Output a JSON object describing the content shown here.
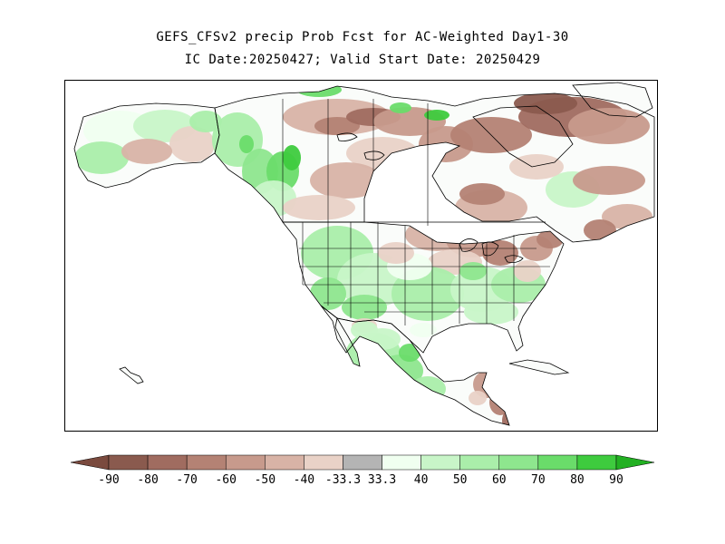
{
  "title": {
    "line1": "GEFS_CFSv2 precip Prob Fcst for AC-Weighted Day1-30",
    "line2": "IC Date:20250427; Valid Start Date: 20250429"
  },
  "map": {
    "region": "North America",
    "field": "precip probability"
  },
  "legend": {
    "bins": [
      {
        "color": "#8a5a4e"
      },
      {
        "color": "#a06c60"
      },
      {
        "color": "#b48274"
      },
      {
        "color": "#c79a8c"
      },
      {
        "color": "#d8b3a6"
      },
      {
        "color": "#e9d2c7"
      },
      {
        "color": "#b4b4b4"
      },
      {
        "color": "#f0fff0"
      },
      {
        "color": "#c8f5c8"
      },
      {
        "color": "#aaeeaa"
      },
      {
        "color": "#8ee68e"
      },
      {
        "color": "#6adc6a"
      },
      {
        "color": "#3ecb3e"
      }
    ],
    "low_arrow_color": "#7a4a3e",
    "high_arrow_color": "#22b022",
    "ticks": [
      "-90",
      "-80",
      "-70",
      "-60",
      "-50",
      "-40",
      "-33.3",
      "33.3",
      "40",
      "50",
      "60",
      "70",
      "80",
      "90"
    ]
  }
}
